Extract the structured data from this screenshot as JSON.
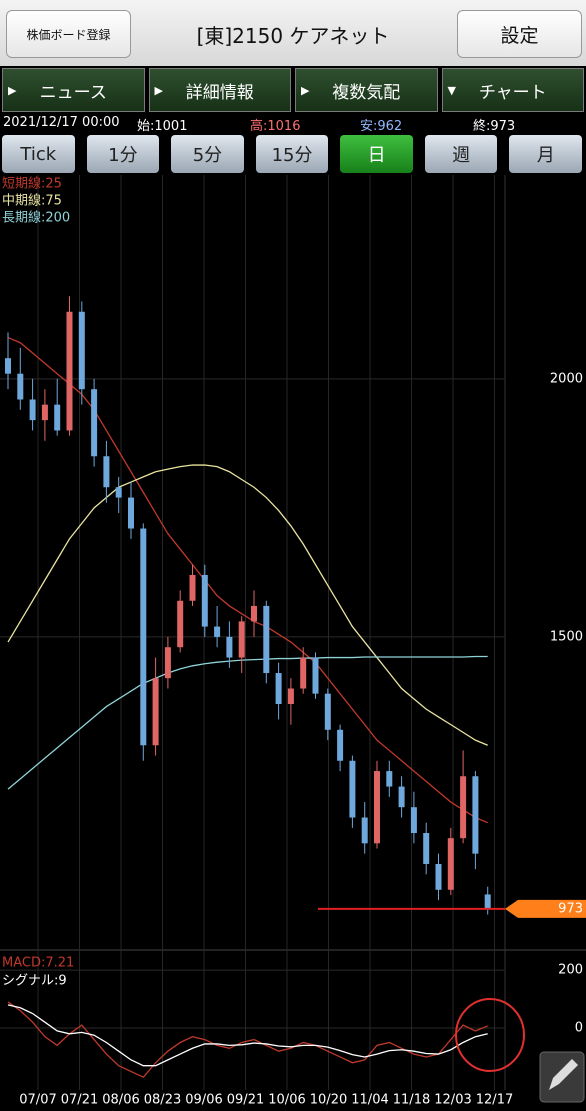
{
  "header": {
    "board_button": "株価ボード登録",
    "title": "[東]2150 ケアネット",
    "settings_button": "設定"
  },
  "tabs": [
    "ニュース",
    "詳細情報",
    "複数気配",
    "チャート"
  ],
  "active_tab": 3,
  "quote": {
    "datetime": "2021/12/17 00:00",
    "open": "始:1001",
    "high": "高:1016",
    "low": "安:962",
    "close": "終:973"
  },
  "periods": [
    "Tick",
    "1分",
    "5分",
    "15分",
    "日",
    "週",
    "月"
  ],
  "active_period": 4,
  "chart_data": [
    {
      "type": "candlestick",
      "up_color": "#e06666",
      "down_color": "#6fa8dc",
      "open": [
        2040,
        2010,
        1960,
        1920,
        1950,
        1900,
        2130,
        1980,
        1850,
        1790,
        1770,
        1710,
        1290,
        1420,
        1480,
        1570,
        1620,
        1520,
        1500,
        1460,
        1530,
        1560,
        1430,
        1370,
        1400,
        1460,
        1390,
        1320,
        1260,
        1150,
        1100,
        1240,
        1210,
        1170,
        1120,
        1060,
        1010,
        1110,
        1230,
        1001
      ],
      "high": [
        2090,
        2060,
        2000,
        1980,
        2000,
        2160,
        2150,
        2000,
        1880,
        1810,
        1800,
        1720,
        1460,
        1500,
        1590,
        1640,
        1640,
        1560,
        1530,
        1540,
        1590,
        1570,
        1450,
        1420,
        1480,
        1470,
        1400,
        1330,
        1270,
        1180,
        1260,
        1260,
        1230,
        1200,
        1140,
        1080,
        1130,
        1280,
        1240,
        1016
      ],
      "low": [
        1980,
        1940,
        1900,
        1880,
        1890,
        1890,
        1950,
        1830,
        1760,
        1740,
        1690,
        1260,
        1270,
        1400,
        1470,
        1560,
        1500,
        1480,
        1440,
        1430,
        1500,
        1410,
        1340,
        1330,
        1390,
        1380,
        1300,
        1240,
        1130,
        1080,
        1090,
        1190,
        1150,
        1100,
        1040,
        990,
        1000,
        1100,
        1050,
        962
      ],
      "close": [
        2010,
        1960,
        1920,
        1950,
        1900,
        2130,
        1980,
        1850,
        1790,
        1770,
        1710,
        1290,
        1420,
        1480,
        1570,
        1620,
        1520,
        1500,
        1460,
        1530,
        1560,
        1430,
        1370,
        1400,
        1460,
        1390,
        1320,
        1260,
        1150,
        1100,
        1240,
        1210,
        1170,
        1120,
        1060,
        1010,
        1110,
        1230,
        1080,
        973
      ],
      "series": [
        {
          "name": "短期線:25",
          "color": "#c0392b",
          "values": [
            2080,
            2070,
            2050,
            2030,
            2010,
            1990,
            1970,
            1940,
            1900,
            1860,
            1820,
            1780,
            1740,
            1700,
            1670,
            1640,
            1610,
            1580,
            1560,
            1545,
            1530,
            1520,
            1505,
            1490,
            1470,
            1450,
            1420,
            1390,
            1360,
            1330,
            1300,
            1280,
            1260,
            1240,
            1220,
            1200,
            1180,
            1165,
            1150,
            1140
          ]
        },
        {
          "name": "中期線:75",
          "color": "#e8e4a0",
          "values": [
            1490,
            1530,
            1570,
            1610,
            1650,
            1690,
            1720,
            1750,
            1770,
            1790,
            1800,
            1810,
            1820,
            1825,
            1830,
            1833,
            1833,
            1830,
            1820,
            1805,
            1790,
            1770,
            1745,
            1715,
            1680,
            1640,
            1600,
            1560,
            1520,
            1490,
            1460,
            1430,
            1400,
            1380,
            1360,
            1345,
            1330,
            1315,
            1300,
            1290
          ]
        },
        {
          "name": "長期線:200",
          "color": "#8fd3d8",
          "values": [
            1205,
            1225,
            1245,
            1265,
            1285,
            1305,
            1325,
            1345,
            1365,
            1380,
            1395,
            1410,
            1420,
            1430,
            1438,
            1444,
            1448,
            1451,
            1453,
            1455,
            1456,
            1457,
            1458,
            1458,
            1459,
            1459,
            1460,
            1460,
            1460,
            1461,
            1461,
            1461,
            1461,
            1461,
            1461,
            1461,
            1461,
            1461,
            1462,
            1462
          ]
        }
      ],
      "last_price": 973,
      "last_price_color": "#ff7f1a",
      "ylim": [
        903,
        2395
      ],
      "yticks": [
        1500,
        2000
      ],
      "grid": true
    },
    {
      "type": "line",
      "series": [
        {
          "name": "MACD:7.21",
          "color": "#c0392b",
          "values": [
            90,
            60,
            20,
            -30,
            -60,
            -20,
            10,
            -40,
            -90,
            -130,
            -150,
            -170,
            -120,
            -80,
            -50,
            -30,
            -40,
            -60,
            -70,
            -50,
            -40,
            -60,
            -80,
            -70,
            -50,
            -60,
            -80,
            -100,
            -120,
            -110,
            -60,
            -50,
            -70,
            -90,
            -100,
            -90,
            -40,
            10,
            -10,
            7.21
          ]
        },
        {
          "name": "シグナル:9",
          "color": "#ffffff",
          "values": [
            80,
            70,
            50,
            20,
            -10,
            -20,
            -15,
            -25,
            -50,
            -80,
            -110,
            -130,
            -130,
            -110,
            -90,
            -70,
            -55,
            -55,
            -60,
            -58,
            -52,
            -55,
            -62,
            -65,
            -60,
            -60,
            -66,
            -78,
            -92,
            -100,
            -90,
            -78,
            -75,
            -80,
            -88,
            -90,
            -75,
            -50,
            -30,
            -20
          ]
        }
      ],
      "ylim": [
        -214,
        252
      ],
      "yticks": [
        0,
        200
      ],
      "x_labels": [
        "07/07",
        "07/21",
        "08/06",
        "08/23",
        "09/06",
        "09/21",
        "10/06",
        "10/20",
        "11/04",
        "11/18",
        "12/03",
        "12/17"
      ]
    }
  ]
}
